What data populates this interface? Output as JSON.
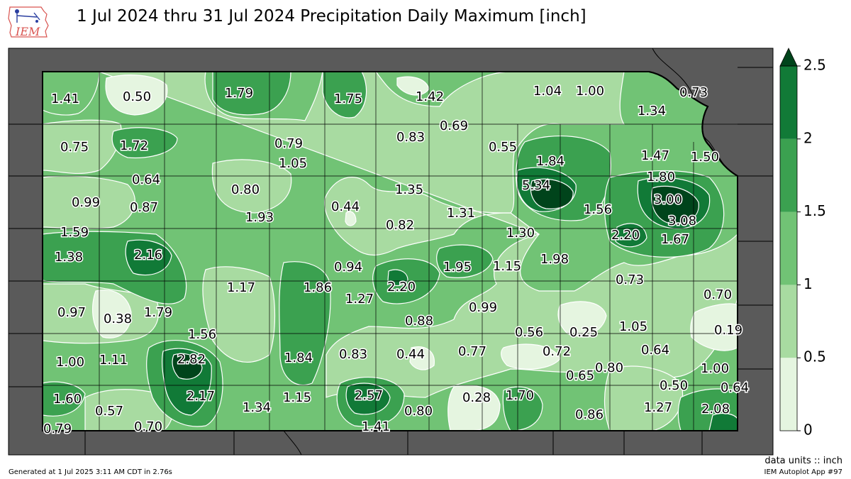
{
  "title": "1 Jul 2024 thru 31 Jul 2024 Precipitation Daily Maximum [inch]",
  "logo_text": "IEM",
  "units_label": "data units :: inch",
  "generated": "Generated at 1 Jul 2025 3:11 AM CDT in 2.76s",
  "app_label": "IEM Autoplot App #97",
  "colorbar": {
    "ticks": [
      "0",
      "0.5",
      "1",
      "1.5",
      "2",
      "2.5"
    ],
    "colors": [
      "#e5f5e0",
      "#a8dba1",
      "#71c375",
      "#3ba150",
      "#117a37",
      "#00441b"
    ]
  },
  "chart_data": {
    "type": "map",
    "variable": "Precipitation Daily Maximum",
    "units": "inch",
    "levels": [
      0,
      0.5,
      1,
      1.5,
      2,
      2.5
    ],
    "values": [
      "1.41",
      "0.50",
      "1.79",
      "1.75",
      "1.42",
      "1.04",
      "1.00",
      "0.73",
      "1.34",
      "0.75",
      "1.72",
      "0.79",
      "1.05",
      "0.83",
      "0.69",
      "0.55",
      "1.84",
      "1.47",
      "1.50",
      "1.80",
      "0.64",
      "0.80",
      "1.35",
      "5.34",
      "3.00",
      "0.99",
      "0.87",
      "0.44",
      "1.31",
      "1.56",
      "3.08",
      "1.93",
      "0.82",
      "1.59",
      "2.20",
      "1.67",
      "1.30",
      "1.38",
      "2.16",
      "0.94",
      "1.95",
      "1.15",
      "1.98",
      "1.17",
      "1.86",
      "2.20",
      "0.73",
      "0.97",
      "0.38",
      "1.79",
      "1.27",
      "0.99",
      "0.70",
      "0.88",
      "1.05",
      "0.19",
      "1.56",
      "0.56",
      "0.25",
      "2.82",
      "1.00",
      "1.11",
      "1.84",
      "0.83",
      "0.44",
      "0.77",
      "0.72",
      "0.64",
      "1.00",
      "0.65",
      "0.80",
      "2.17",
      "2.57",
      "0.50",
      "0.64",
      "1.60",
      "0.28",
      "1.70",
      "1.34",
      "1.15",
      "0.57",
      "0.80",
      "0.86",
      "1.27",
      "2.08",
      "0.79",
      "0.70",
      "1.41"
    ]
  }
}
